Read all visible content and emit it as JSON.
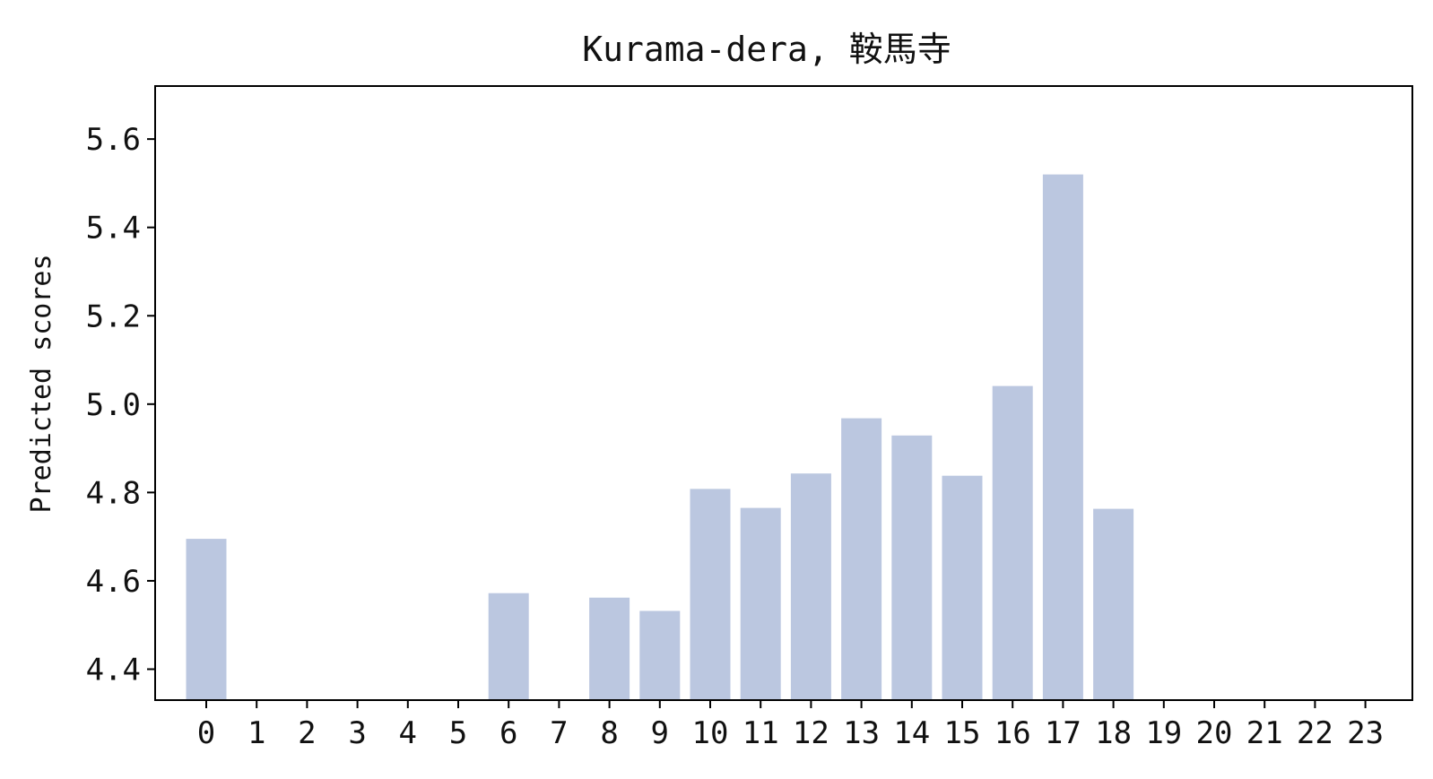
{
  "chart_data": {
    "type": "bar",
    "title": "Kurama-dera, 鞍馬寺",
    "xlabel": "",
    "ylabel": "Predicted scores",
    "categories": [
      "0",
      "1",
      "2",
      "3",
      "4",
      "5",
      "6",
      "7",
      "8",
      "9",
      "10",
      "11",
      "12",
      "13",
      "14",
      "15",
      "16",
      "17",
      "18",
      "19",
      "20",
      "21",
      "22",
      "23"
    ],
    "values": [
      4.695,
      null,
      null,
      null,
      null,
      null,
      4.572,
      null,
      4.562,
      4.532,
      4.808,
      4.765,
      4.843,
      4.968,
      4.929,
      4.838,
      5.041,
      5.52,
      4.763,
      null,
      null,
      null,
      null,
      null
    ],
    "yticks": [
      "4.4",
      "4.6",
      "4.8",
      "5.0",
      "5.2",
      "5.4",
      "5.6"
    ],
    "ylim": [
      4.33,
      5.72
    ],
    "bar_color": "#bbc7e0",
    "grid": false,
    "legend": "none"
  }
}
